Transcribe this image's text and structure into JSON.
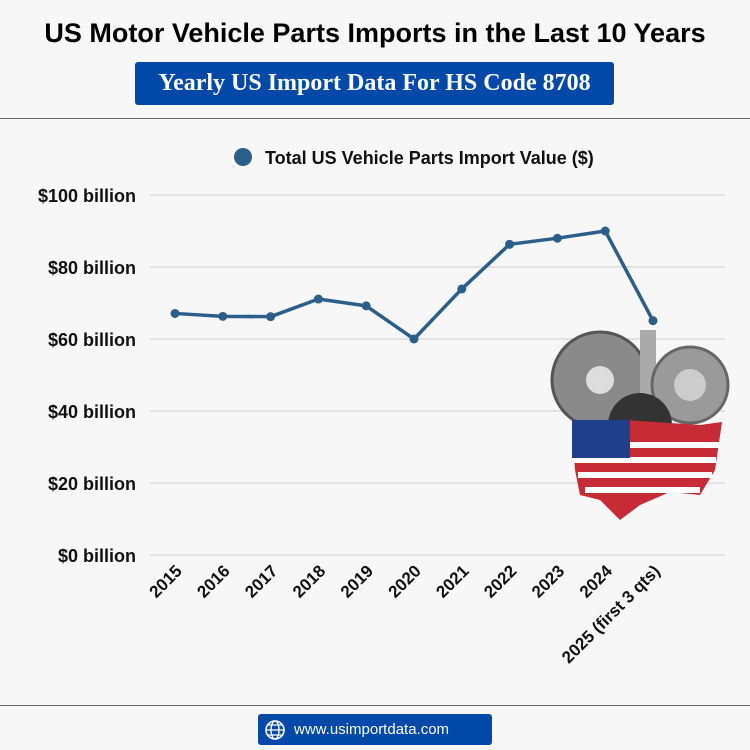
{
  "header": {
    "title": "US Motor Vehicle Parts Imports in the Last 10 Years",
    "subtitle": "Yearly US Import Data For HS Code 8708"
  },
  "footer": {
    "url": "www.usimportdata.com",
    "icon": "globe-icon"
  },
  "chart_data": {
    "type": "line",
    "title": "US Motor Vehicle Parts Imports in the Last 10 Years",
    "xlabel": "",
    "ylabel": "",
    "categories": [
      "2015",
      "2016",
      "2017",
      "2018",
      "2019",
      "2020",
      "2021",
      "2022",
      "2023",
      "2024",
      "2025 (first 3 qts)"
    ],
    "series": [
      {
        "name": "Total US Vehicle Parts Import Value ($)",
        "color": "#2b5f8a",
        "values": [
          67.1,
          66.3,
          66.2,
          71.1,
          69.2,
          60.0,
          73.9,
          86.3,
          88.0,
          90.0,
          65.1
        ]
      }
    ],
    "ylim": [
      0,
      100
    ],
    "yticks": [
      0,
      20,
      40,
      60,
      80,
      100
    ],
    "ytick_labels": [
      "$0 billion",
      "$20 billion",
      "$40 billion",
      "$60 billion",
      "$80 billion",
      "$100 billion"
    ],
    "grid": true,
    "legend": "top-center"
  }
}
